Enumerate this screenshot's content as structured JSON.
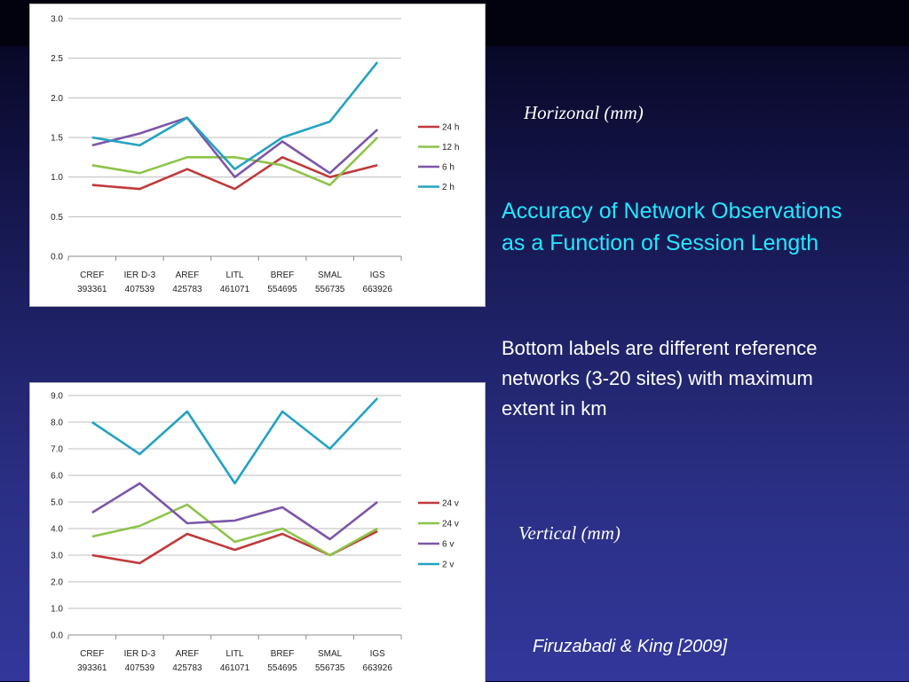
{
  "slide": {
    "horizontal_label": "Horizonal (mm)",
    "heading_line1": "Accuracy of Network Observations",
    "heading_line2": "as a Function of Session Length",
    "body_line1": "Bottom labels are different reference",
    "body_line2": "networks (3-20 sites) with maximum",
    "body_line3": "extent in km",
    "vertical_label": "Vertical (mm)",
    "citation": "Firuzabadi & King [2009]"
  },
  "chart_data": [
    {
      "type": "line",
      "categories": [
        [
          "CREF",
          "393361"
        ],
        [
          "IER D-3",
          "407539"
        ],
        [
          "AREF",
          "425783"
        ],
        [
          "LITL",
          "461071"
        ],
        [
          "BREF",
          "554695"
        ],
        [
          "SMAL",
          "556735"
        ],
        [
          "IGS",
          "663926"
        ]
      ],
      "ylim": [
        0,
        3.0
      ],
      "yticks": [
        "0.0",
        "0.5",
        "1.0",
        "1.5",
        "2.0",
        "2.5",
        "3.0"
      ],
      "grid": true,
      "legend": "right",
      "series": [
        {
          "name": "24 h",
          "color": "#c0393b",
          "values": [
            0.9,
            0.85,
            1.1,
            0.85,
            1.25,
            1.0,
            1.15
          ]
        },
        {
          "name": "12 h",
          "color": "#8dc349",
          "values": [
            1.15,
            1.05,
            1.25,
            1.25,
            1.15,
            0.9,
            1.5
          ]
        },
        {
          "name": "6 h",
          "color": "#7c56a8",
          "values": [
            1.4,
            1.55,
            1.75,
            1.0,
            1.45,
            1.05,
            1.6
          ]
        },
        {
          "name": "2 h",
          "color": "#23a3c2",
          "values": [
            1.5,
            1.4,
            1.75,
            1.1,
            1.5,
            1.7,
            2.45
          ]
        }
      ]
    },
    {
      "type": "line",
      "categories": [
        [
          "CREF",
          "393361"
        ],
        [
          "IER D-3",
          "407539"
        ],
        [
          "AREF",
          "425783"
        ],
        [
          "LITL",
          "461071"
        ],
        [
          "BREF",
          "554695"
        ],
        [
          "SMAL",
          "556735"
        ],
        [
          "IGS",
          "663926"
        ]
      ],
      "ylim": [
        0,
        9.0
      ],
      "yticks": [
        "0.0",
        "1.0",
        "2.0",
        "3.0",
        "4.0",
        "5.0",
        "6.0",
        "7.0",
        "8.0",
        "9.0"
      ],
      "grid": true,
      "legend": "right",
      "series": [
        {
          "name": "24 v",
          "color": "#c0393b",
          "values": [
            3.0,
            2.7,
            3.8,
            3.2,
            3.8,
            3.0,
            3.9
          ]
        },
        {
          "name": "24 v",
          "color": "#8dc349",
          "values": [
            3.7,
            4.1,
            4.9,
            3.5,
            4.0,
            3.0,
            4.0
          ]
        },
        {
          "name": "6 v",
          "color": "#7c56a8",
          "values": [
            4.6,
            5.7,
            4.2,
            4.3,
            4.8,
            3.6,
            5.0
          ]
        },
        {
          "name": "2 v",
          "color": "#23a3c2",
          "values": [
            8.0,
            6.8,
            8.4,
            5.7,
            8.4,
            7.0,
            8.9
          ]
        }
      ]
    }
  ]
}
